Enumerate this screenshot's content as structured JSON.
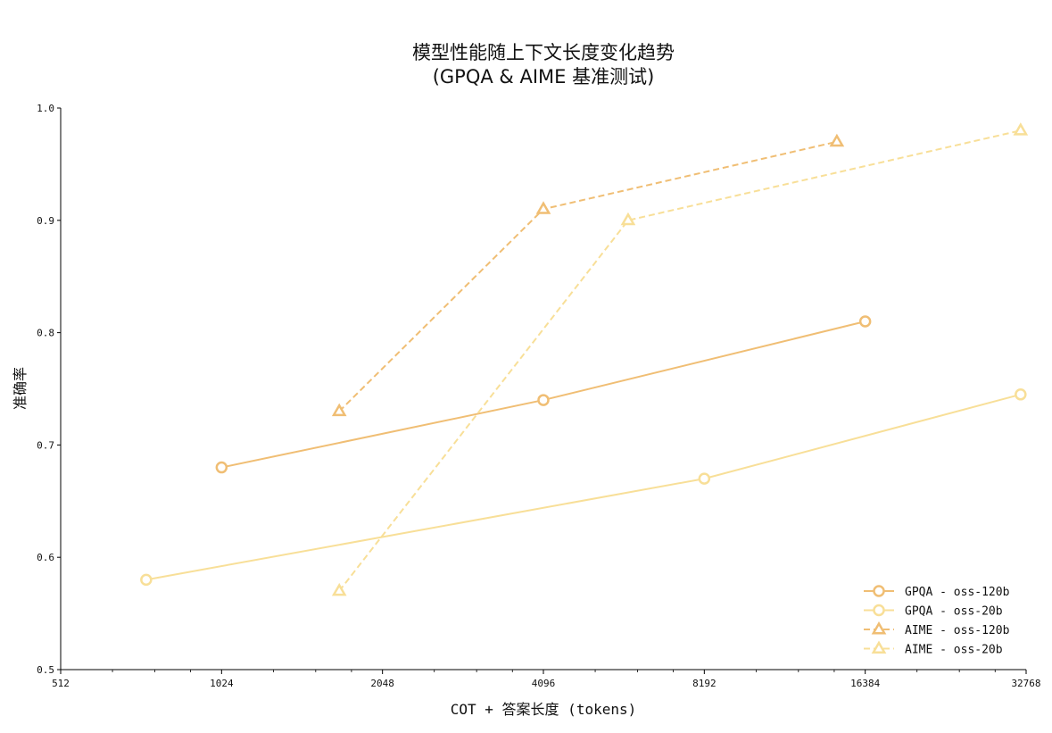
{
  "chart_data": {
    "type": "line",
    "title": "模型性能随上下文长度变化趋势",
    "subtitle": "(GPQA & AIME 基准测试)",
    "xlabel": "COT + 答案长度 (tokens)",
    "ylabel": "准确率",
    "xscale": "log2",
    "xlim": [
      512,
      32768
    ],
    "ylim": [
      0.5,
      1.0
    ],
    "x_ticks": [
      "512",
      "1024",
      "2048",
      "4096",
      "8192",
      "16384",
      "32768"
    ],
    "y_ticks": [
      "0.5",
      "0.6",
      "0.7",
      "0.8",
      "0.9",
      "1.0"
    ],
    "grid": false,
    "legend_position": "lower-right",
    "series": [
      {
        "name": "GPQA - oss-120b",
        "x": [
          1024,
          4096,
          16384
        ],
        "y": [
          0.68,
          0.74,
          0.81
        ],
        "color": "#F0BE74",
        "line_style": "solid",
        "marker": "circle"
      },
      {
        "name": "GPQA - oss-20b",
        "x": [
          740,
          8192,
          32000
        ],
        "y": [
          0.58,
          0.67,
          0.745
        ],
        "color": "#F8DF98",
        "line_style": "solid",
        "marker": "circle"
      },
      {
        "name": "AIME - oss-120b",
        "x": [
          1700,
          4096,
          14500
        ],
        "y": [
          0.73,
          0.91,
          0.97
        ],
        "color": "#F0BE74",
        "line_style": "dashed",
        "marker": "triangle"
      },
      {
        "name": "AIME - oss-20b",
        "x": [
          1700,
          5900,
          32000
        ],
        "y": [
          0.57,
          0.9,
          0.98
        ],
        "color": "#F8DF98",
        "line_style": "dashed",
        "marker": "triangle"
      }
    ]
  }
}
